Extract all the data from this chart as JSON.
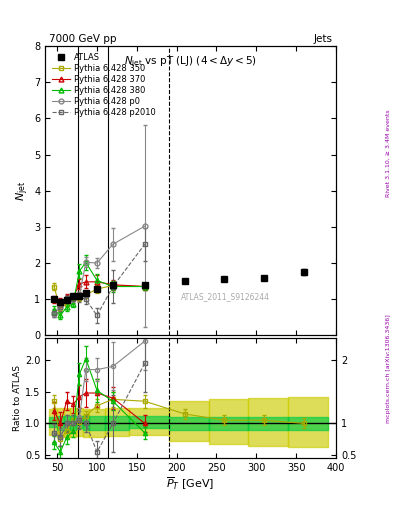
{
  "title_top": "7000 GeV pp",
  "title_right": "Jets",
  "plot_title": "N$_{jet}$ vs pT (LJ) (4 < $\\Delta$y < 5)",
  "watermark": "ATLAS_2011_S9126244",
  "rivet_text": "Rivet 3.1.10, ≥ 3.4M events",
  "arxiv_text": "mcplots.cern.ch [arXiv:1306.3436]",
  "atlas_x": [
    46,
    54,
    62,
    70,
    78,
    86,
    100,
    120,
    160,
    210,
    260,
    310,
    360
  ],
  "atlas_y": [
    1.0,
    0.92,
    0.98,
    1.08,
    1.08,
    1.18,
    1.28,
    1.38,
    1.4,
    1.5,
    1.55,
    1.6,
    1.75
  ],
  "atlas_yerr": [
    0.04,
    0.04,
    0.04,
    0.04,
    0.04,
    0.04,
    0.05,
    0.06,
    0.05,
    0.05,
    0.05,
    0.05,
    0.08
  ],
  "p350_x": [
    46,
    54,
    62,
    70,
    78,
    86,
    100,
    120,
    160
  ],
  "p350_y": [
    1.35,
    0.75,
    0.88,
    1.05,
    1.02,
    1.12,
    1.28,
    1.38,
    1.35
  ],
  "p350_yerr": [
    0.1,
    0.1,
    0.08,
    0.08,
    0.08,
    0.08,
    0.1,
    0.12,
    0.1
  ],
  "p370_x": [
    46,
    54,
    62,
    70,
    78,
    86,
    100,
    120,
    160
  ],
  "p370_y": [
    1.0,
    0.88,
    1.05,
    1.05,
    1.42,
    1.48,
    1.48,
    1.4,
    1.35
  ],
  "p370_yerr": [
    0.1,
    0.14,
    0.1,
    0.1,
    0.14,
    0.18,
    0.18,
    0.14,
    0.1
  ],
  "p380_x": [
    46,
    54,
    62,
    70,
    78,
    86,
    100,
    120,
    160
  ],
  "p380_y": [
    0.7,
    0.55,
    0.78,
    0.88,
    1.78,
    2.02,
    1.52,
    1.35,
    1.35
  ],
  "p380_yerr": [
    0.1,
    0.1,
    0.1,
    0.1,
    0.18,
    0.2,
    0.18,
    0.14,
    0.1
  ],
  "p0_x": [
    46,
    54,
    62,
    70,
    78,
    86,
    100,
    120,
    160
  ],
  "p0_y": [
    0.6,
    0.78,
    1.0,
    1.0,
    1.1,
    2.02,
    2.0,
    2.52,
    3.02
  ],
  "p0_yerr": [
    0.1,
    0.1,
    0.1,
    0.1,
    0.1,
    0.14,
    0.14,
    0.45,
    2.8
  ],
  "p2010_x": [
    46,
    54,
    62,
    70,
    78,
    86,
    100,
    120,
    160
  ],
  "p2010_y": [
    0.62,
    0.78,
    1.02,
    1.0,
    1.05,
    1.0,
    0.55,
    1.35,
    2.52
  ],
  "p2010_yerr": [
    0.1,
    0.1,
    0.1,
    0.1,
    0.14,
    0.14,
    0.2,
    0.45,
    0.45
  ],
  "ratio_p350_x": [
    46,
    54,
    62,
    70,
    78,
    86,
    100,
    120,
    160,
    210,
    260,
    310,
    360
  ],
  "ratio_p350_y": [
    1.35,
    0.75,
    0.88,
    1.05,
    1.02,
    1.12,
    1.28,
    1.38,
    1.35,
    1.15,
    1.05,
    1.05,
    1.0
  ],
  "ratio_p350_yerr": [
    0.1,
    0.1,
    0.08,
    0.08,
    0.08,
    0.08,
    0.1,
    0.12,
    0.1,
    0.08,
    0.08,
    0.08,
    0.08
  ],
  "ratio_p370_x": [
    46,
    54,
    62,
    70,
    78,
    86,
    100,
    120,
    160
  ],
  "ratio_p370_y": [
    1.2,
    1.0,
    1.35,
    1.3,
    1.42,
    1.48,
    1.48,
    1.4,
    1.0
  ],
  "ratio_p370_yerr": [
    0.14,
    0.18,
    0.14,
    0.14,
    0.18,
    0.22,
    0.22,
    0.18,
    0.14
  ],
  "ratio_p380_x": [
    46,
    54,
    62,
    70,
    78,
    86,
    100,
    120,
    160
  ],
  "ratio_p380_y": [
    0.7,
    0.55,
    0.78,
    0.88,
    1.78,
    2.02,
    1.52,
    1.35,
    0.85
  ],
  "ratio_p380_yerr": [
    0.1,
    0.1,
    0.1,
    0.1,
    0.18,
    0.2,
    0.18,
    0.14,
    0.1
  ],
  "ratio_p0_x": [
    46,
    54,
    62,
    70,
    78,
    86,
    100,
    120,
    160
  ],
  "ratio_p0_y": [
    0.85,
    0.78,
    1.0,
    1.0,
    1.1,
    1.85,
    1.85,
    1.9,
    2.3
  ],
  "ratio_p0_yerr": [
    0.14,
    0.14,
    0.14,
    0.14,
    0.14,
    0.18,
    0.18,
    0.38,
    0.45
  ],
  "ratio_p2010_x": [
    46,
    54,
    62,
    70,
    78,
    86,
    100,
    120,
    160
  ],
  "ratio_p2010_y": [
    0.85,
    0.78,
    1.0,
    1.0,
    1.05,
    1.0,
    0.55,
    1.0,
    1.95
  ],
  "ratio_p2010_yerr": [
    0.14,
    0.14,
    0.14,
    0.14,
    0.14,
    0.14,
    0.18,
    0.45,
    0.45
  ],
  "band_edges": [
    40,
    50,
    58,
    66,
    74,
    82,
    90,
    110,
    140,
    190,
    240,
    290,
    340,
    390
  ],
  "band_inner_lo": [
    0.94,
    0.9,
    0.9,
    0.9,
    0.92,
    0.9,
    0.9,
    0.9,
    0.92,
    0.9,
    0.9,
    0.9,
    0.9
  ],
  "band_inner_hi": [
    1.1,
    1.12,
    1.12,
    1.12,
    1.12,
    1.12,
    1.12,
    1.12,
    1.12,
    1.1,
    1.1,
    1.1,
    1.1
  ],
  "band_outer_lo": [
    0.82,
    0.78,
    0.78,
    0.78,
    0.8,
    0.78,
    0.78,
    0.8,
    0.82,
    0.72,
    0.68,
    0.65,
    0.62
  ],
  "band_outer_hi": [
    1.22,
    1.25,
    1.25,
    1.25,
    1.25,
    1.22,
    1.22,
    1.25,
    1.25,
    1.35,
    1.38,
    1.4,
    1.42
  ],
  "vline_x1": 76,
  "vline_x2": 114,
  "vline_x3": 190,
  "color_p350": "#aaaa00",
  "color_p370": "#cc0000",
  "color_p380": "#00bb00",
  "color_p0": "#888888",
  "color_p2010": "#666666",
  "color_inner_band": "#00cc44",
  "color_outer_band": "#cccc00",
  "main_ylim": [
    0.0,
    8.0
  ],
  "ratio_ylim": [
    0.45,
    2.35
  ],
  "xlim": [
    35,
    400
  ]
}
